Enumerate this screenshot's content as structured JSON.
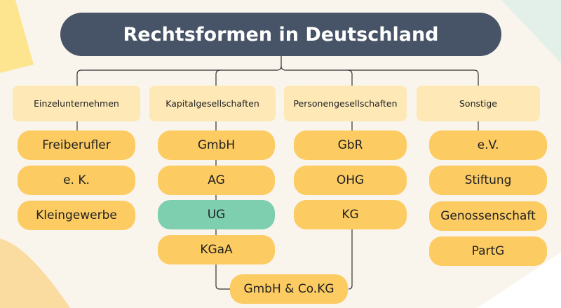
{
  "title": "Rechtsformen in Deutschland",
  "colors": {
    "title_bg": "#475467",
    "category_bg": "#fde8b6",
    "item_bg": "#fccb62",
    "highlight_bg": "#7dcfb0",
    "background": "#faf5ec"
  },
  "categories": [
    {
      "label": "Einzelunternehmen",
      "items": [
        "Freiberufler",
        "e. K.",
        "Kleingewerbe"
      ]
    },
    {
      "label": "Kapitalgesellschaften",
      "items": [
        "GmbH",
        "AG",
        "UG",
        "KGaA"
      ]
    },
    {
      "label": "Personengesellschaften",
      "items": [
        "GbR",
        "OHG",
        "KG"
      ]
    },
    {
      "label": "Sonstige",
      "items": [
        "e.V.",
        "Stiftung",
        "Genossenschaft",
        "PartG"
      ]
    }
  ],
  "highlighted_item": "UG",
  "shared_item": "GmbH & Co.KG"
}
